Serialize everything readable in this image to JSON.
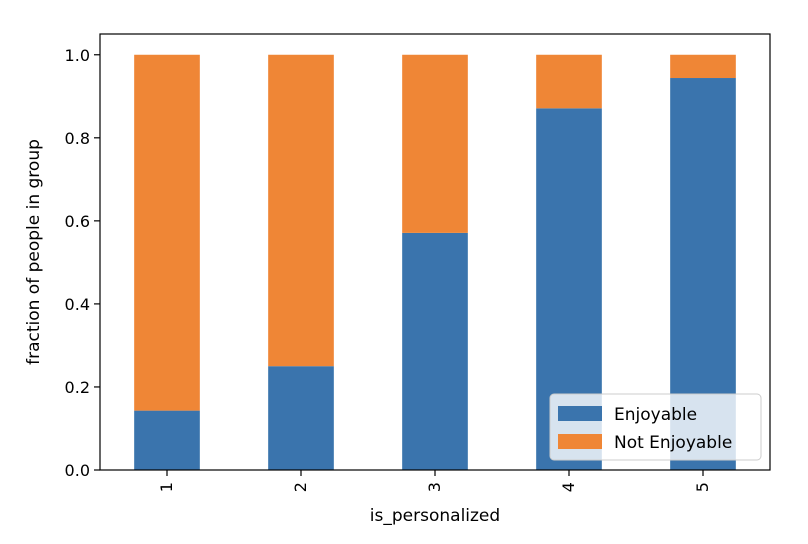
{
  "chart_data": {
    "type": "bar",
    "stacked": true,
    "categories": [
      "1",
      "2",
      "3",
      "4",
      "5"
    ],
    "series": [
      {
        "name": "Enjoyable",
        "values": [
          0.143,
          0.25,
          0.571,
          0.871,
          0.944
        ],
        "color": "#3a74ad"
      },
      {
        "name": "Not Enjoyable",
        "values": [
          0.857,
          0.75,
          0.429,
          0.129,
          0.056
        ],
        "color": "#ef8636"
      }
    ],
    "title": "",
    "xlabel": "is_personalized",
    "ylabel": "fraction of people in group",
    "ylim": [
      0,
      1.05
    ],
    "yticks": [
      "0.0",
      "0.2",
      "0.4",
      "0.6",
      "0.8",
      "1.0"
    ],
    "grid": false,
    "legend_position": "lower-right"
  }
}
